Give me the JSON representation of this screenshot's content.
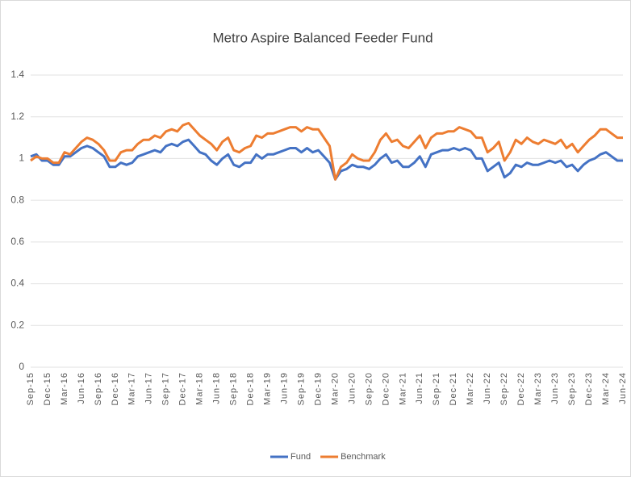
{
  "chart_data": {
    "type": "line",
    "title": "Metro Aspire Balanced Feeder Fund",
    "categories": [
      "Sep-15",
      null,
      null,
      "Dec-15",
      null,
      null,
      "Mar-16",
      null,
      null,
      "Jun-16",
      null,
      null,
      "Sep-16",
      null,
      null,
      "Dec-16",
      null,
      null,
      "Mar-17",
      null,
      null,
      "Jun-17",
      null,
      null,
      "Sep-17",
      null,
      null,
      "Dec-17",
      null,
      null,
      "Mar-18",
      null,
      null,
      "Jun-18",
      null,
      null,
      "Sep-18",
      null,
      null,
      "Dec-18",
      null,
      null,
      "Mar-19",
      null,
      null,
      "Jun-19",
      null,
      null,
      "Sep-19",
      null,
      null,
      "Dec-19",
      null,
      null,
      "Mar-20",
      null,
      null,
      "Jun-20",
      null,
      null,
      "Sep-20",
      null,
      null,
      "Dec-20",
      null,
      null,
      "Mar-21",
      null,
      null,
      "Jun-21",
      null,
      null,
      "Sep-21",
      null,
      null,
      "Dec-21",
      null,
      null,
      "Mar-22",
      null,
      null,
      "Jun-22",
      null,
      null,
      "Sep-22",
      null,
      null,
      "Dec-22",
      null,
      null,
      "Mar-23",
      null,
      null,
      "Jun-23",
      null,
      null,
      "Sep-23",
      null,
      null,
      "Dec-23",
      null,
      null,
      "Mar-24",
      null,
      null,
      "Jun-24"
    ],
    "series": [
      {
        "name": "Fund",
        "color": "#4472c4",
        "values": [
          1.01,
          1.02,
          0.99,
          0.99,
          0.97,
          0.97,
          1.01,
          1.01,
          1.03,
          1.05,
          1.06,
          1.05,
          1.03,
          1.01,
          0.96,
          0.96,
          0.98,
          0.97,
          0.98,
          1.01,
          1.02,
          1.03,
          1.04,
          1.03,
          1.06,
          1.07,
          1.06,
          1.08,
          1.09,
          1.06,
          1.03,
          1.02,
          0.99,
          0.97,
          1.0,
          1.02,
          0.97,
          0.96,
          0.98,
          0.98,
          1.02,
          1.0,
          1.02,
          1.02,
          1.03,
          1.04,
          1.05,
          1.05,
          1.03,
          1.05,
          1.03,
          1.04,
          1.01,
          0.98,
          0.9,
          0.94,
          0.95,
          0.97,
          0.96,
          0.96,
          0.95,
          0.97,
          1.0,
          1.02,
          0.98,
          0.99,
          0.96,
          0.96,
          0.98,
          1.01,
          0.96,
          1.02,
          1.03,
          1.04,
          1.04,
          1.05,
          1.04,
          1.05,
          1.04,
          1.0,
          1.0,
          0.94,
          0.96,
          0.98,
          0.91,
          0.93,
          0.97,
          0.96,
          0.98,
          0.97,
          0.97,
          0.98,
          0.99,
          0.98,
          0.99,
          0.96,
          0.97,
          0.94,
          0.97,
          0.99,
          1.0,
          1.02,
          1.03,
          1.01,
          0.99,
          0.99
        ]
      },
      {
        "name": "Benchmark",
        "color": "#ed7d31",
        "values": [
          0.99,
          1.01,
          1.0,
          1.0,
          0.98,
          0.98,
          1.03,
          1.02,
          1.05,
          1.08,
          1.1,
          1.09,
          1.07,
          1.04,
          0.99,
          0.99,
          1.03,
          1.04,
          1.04,
          1.07,
          1.09,
          1.09,
          1.11,
          1.1,
          1.13,
          1.14,
          1.13,
          1.16,
          1.17,
          1.14,
          1.11,
          1.09,
          1.07,
          1.04,
          1.08,
          1.1,
          1.04,
          1.03,
          1.05,
          1.06,
          1.11,
          1.1,
          1.12,
          1.12,
          1.13,
          1.14,
          1.15,
          1.15,
          1.13,
          1.15,
          1.14,
          1.14,
          1.1,
          1.06,
          0.9,
          0.96,
          0.98,
          1.02,
          1.0,
          0.99,
          0.99,
          1.03,
          1.09,
          1.12,
          1.08,
          1.09,
          1.06,
          1.05,
          1.08,
          1.11,
          1.05,
          1.1,
          1.12,
          1.12,
          1.13,
          1.13,
          1.15,
          1.14,
          1.13,
          1.1,
          1.1,
          1.03,
          1.05,
          1.08,
          0.99,
          1.03,
          1.09,
          1.07,
          1.1,
          1.08,
          1.07,
          1.09,
          1.08,
          1.07,
          1.09,
          1.05,
          1.07,
          1.03,
          1.06,
          1.09,
          1.11,
          1.14,
          1.14,
          1.12,
          1.1,
          1.1
        ]
      }
    ],
    "ylim": [
      0,
      1.4
    ],
    "yticks": [
      0,
      0.2,
      0.4,
      0.6,
      0.8,
      1,
      1.2,
      1.4
    ],
    "grid": true,
    "legend": "bottom"
  }
}
